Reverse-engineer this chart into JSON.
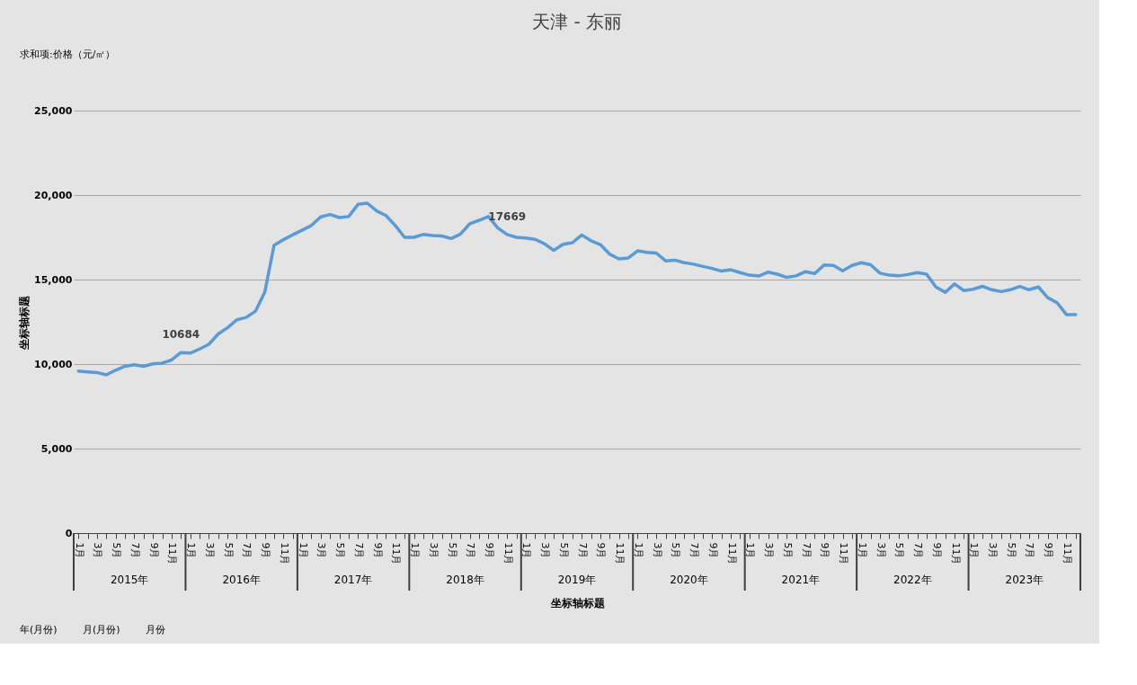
{
  "chart_data": {
    "type": "line",
    "title": "天津 - 东丽",
    "xlabel": "坐标轴标题",
    "ylabel": "坐标轴标题",
    "categories": [
      "1月",
      null,
      "3月",
      null,
      "5月",
      null,
      "7月",
      null,
      "9月",
      null,
      "11月",
      null,
      "1月",
      null,
      "3月",
      null,
      "5月",
      null,
      "7月",
      null,
      "9月",
      null,
      "11月",
      null,
      "1月",
      null,
      "3月",
      null,
      "5月",
      null,
      "7月",
      null,
      "9月",
      null,
      "11月",
      null,
      "1月",
      null,
      "3月",
      null,
      "5月",
      null,
      "7月",
      null,
      "9月",
      null,
      "11月",
      null,
      "1月",
      null,
      "3月",
      null,
      "5月",
      null,
      "7月",
      null,
      "9月",
      null,
      "11月",
      null,
      "1月",
      null,
      "3月",
      null,
      "5月",
      null,
      "7月",
      null,
      "9月",
      null,
      "11月",
      null,
      "1月",
      null,
      "3月",
      null,
      "5月",
      null,
      "7月",
      null,
      "9月",
      null,
      "11月",
      null,
      "1月",
      null,
      "3月",
      null,
      "5月",
      null,
      "7月",
      null,
      "9月",
      null,
      "11月",
      null,
      "1月",
      null,
      "3月",
      null,
      "5月",
      null,
      "7月",
      null,
      "9月",
      null,
      "11月",
      null
    ],
    "series": [
      {
        "color": "#5b9bd5",
        "values": [
          9590,
          9540,
          9500,
          9360,
          9640,
          9870,
          9960,
          9870,
          10010,
          10060,
          10240,
          10684,
          10650,
          10890,
          11170,
          11780,
          12150,
          12620,
          12760,
          13130,
          14250,
          17040,
          17360,
          17650,
          17920,
          18200,
          18710,
          18850,
          18670,
          18730,
          19450,
          19520,
          19060,
          18790,
          18200,
          17500,
          17500,
          17670,
          17610,
          17580,
          17430,
          17690,
          18310,
          18510,
          18730,
          18050,
          17669,
          17500,
          17460,
          17380,
          17120,
          16730,
          17090,
          17180,
          17640,
          17300,
          17070,
          16500,
          16220,
          16280,
          16700,
          16610,
          16570,
          16110,
          16150,
          16000,
          15910,
          15780,
          15660,
          15500,
          15580,
          15410,
          15260,
          15210,
          15440,
          15320,
          15130,
          15220,
          15470,
          15360,
          15860,
          15840,
          15520,
          15840,
          16000,
          15880,
          15380,
          15260,
          15220,
          15300,
          15410,
          15320,
          14560,
          14250,
          14740,
          14350,
          14430,
          14600,
          14400,
          14290,
          14400,
          14590,
          14400,
          14560,
          13930,
          13630,
          12930,
          12930
        ],
        "value_labels": [
          null,
          null,
          null,
          null,
          null,
          null,
          null,
          null,
          null,
          null,
          null,
          "10684",
          null,
          null,
          null,
          null,
          null,
          null,
          null,
          null,
          null,
          null,
          null,
          null,
          null,
          null,
          null,
          null,
          null,
          null,
          null,
          null,
          null,
          null,
          null,
          null,
          null,
          null,
          null,
          null,
          null,
          null,
          null,
          null,
          null,
          null,
          "17669",
          null,
          null,
          null,
          null,
          null,
          null,
          null,
          null,
          null,
          null,
          null,
          null,
          null,
          null,
          null,
          null,
          null,
          null,
          null,
          null,
          null,
          null,
          null,
          null,
          null,
          null,
          null,
          null,
          null,
          null,
          null,
          null,
          null,
          null,
          null,
          null,
          null,
          null,
          null,
          null,
          null,
          null,
          null,
          null,
          null,
          null,
          null,
          null,
          null,
          null,
          null,
          null,
          null,
          null,
          null,
          null,
          null,
          null,
          null,
          null,
          null
        ]
      }
    ],
    "ylim": [
      0,
      25000
    ],
    "yticks": [
      0,
      {
        "value": 5000,
        "label": "5,000"
      },
      {
        "value": 10000,
        "label": "10,000"
      },
      {
        "value": 15000,
        "label": "15,000"
      },
      {
        "value": 20000,
        "label": "20,000"
      },
      {
        "value": 25000,
        "label": "25,000"
      }
    ],
    "grid": "y",
    "legend": false,
    "marker": "none",
    "line_style": "solid",
    "annotations": [
      "求和项:价格（元/㎡）",
      "2015年",
      "2016年",
      "2017年",
      "2018年",
      "2019年",
      "2020年",
      "2021年",
      "2022年",
      "2023年",
      "年(月份)",
      "月(月份)",
      "月份"
    ]
  }
}
